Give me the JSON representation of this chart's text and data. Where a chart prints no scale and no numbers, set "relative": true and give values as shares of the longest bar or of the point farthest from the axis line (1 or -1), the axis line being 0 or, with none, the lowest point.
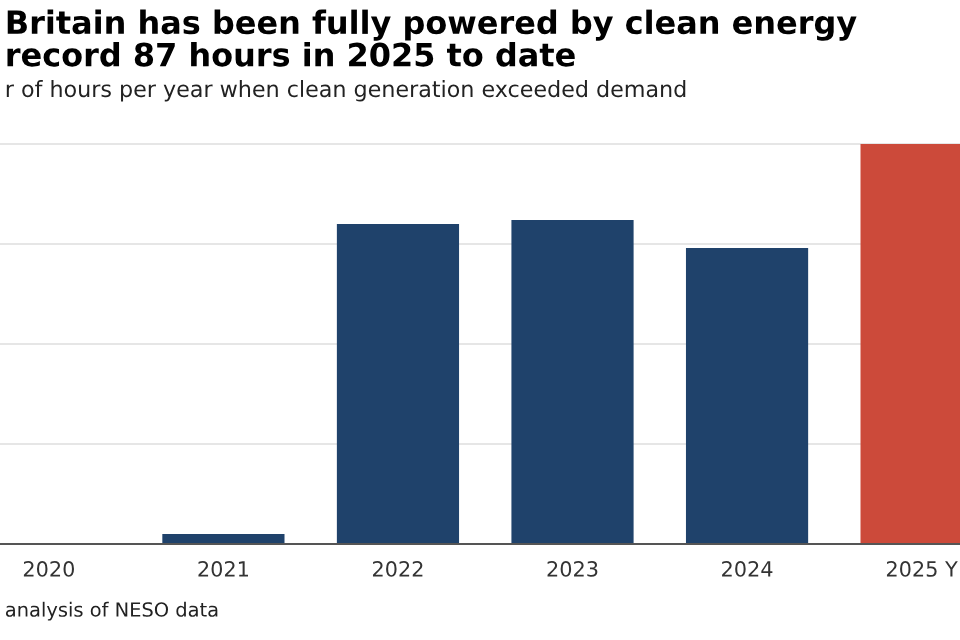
{
  "chart_data": {
    "type": "bar",
    "title": "Britain has been fully powered by clean energy\nrecord 87 hours in 2025 to date",
    "subtitle": "r of hours per year when clean generation exceeded demand",
    "categories": [
      "2020",
      "2021",
      "2022",
      "2023",
      "2024",
      "2025 Y"
    ],
    "values": [
      0,
      0.025,
      0.8,
      0.81,
      0.74,
      1
    ],
    "colors": [
      "#1f426b",
      "#1f426b",
      "#1f426b",
      "#1f426b",
      "#1f426b",
      "#cc4a3a"
    ],
    "relative": true,
    "grid": "y",
    "annotations": [
      "analysis of NESO data"
    ]
  }
}
